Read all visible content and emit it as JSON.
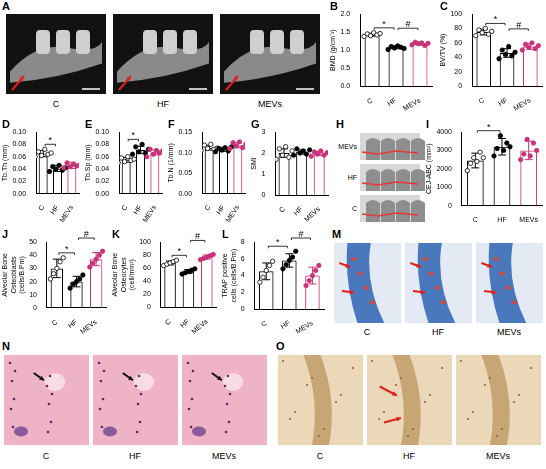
{
  "chart_data": [
    {
      "panel_label": "B",
      "type": "bar",
      "y_label": "BMD (g/cm⁻³)",
      "categories": [
        "C",
        "HF",
        "MEVs"
      ],
      "values": [
        1.43,
        1.08,
        1.18
      ],
      "errors": [
        0.04,
        0.04,
        0.04
      ],
      "points": [
        [
          1.38,
          1.45,
          1.4,
          1.48,
          1.42,
          1.46
        ],
        [
          1.02,
          1.1,
          1.06,
          1.12,
          1.08,
          1.05
        ],
        [
          1.15,
          1.22,
          1.18,
          1.2,
          1.13,
          1.19
        ]
      ],
      "colors": [
        "#000000",
        "#000000",
        "#c83278"
      ],
      "point_colors": [
        "#ffffff",
        "#000000",
        "#c83278"
      ],
      "ylim": [
        0,
        2
      ],
      "yticks": [
        {
          "value": 0,
          "label": "0.0"
        },
        0.5,
        {
          "value": 1,
          "label": "1.0"
        },
        1.5,
        {
          "value": 2,
          "label": "2.0"
        }
      ],
      "grid": false,
      "annotations": [
        {
          "from": "C",
          "to": "HF",
          "text": "*"
        },
        {
          "from": "HF",
          "to": "MEVs",
          "text": "#"
        }
      ]
    },
    {
      "panel_label": "C",
      "type": "bar",
      "y_label": "BV/TV (%)",
      "categories": [
        "C",
        "HF",
        "MEVs"
      ],
      "values": [
        75,
        46,
        55
      ],
      "errors": [
        4,
        6,
        4
      ],
      "points": [
        [
          70,
          78,
          74,
          80,
          72,
          76
        ],
        [
          38,
          50,
          44,
          55,
          42,
          47
        ],
        [
          50,
          58,
          54,
          60,
          52,
          56
        ]
      ],
      "colors": [
        "#000000",
        "#000000",
        "#c83278"
      ],
      "point_colors": [
        "#ffffff",
        "#000000",
        "#c83278"
      ],
      "ylim": [
        0,
        100
      ],
      "yticks": [
        0,
        20,
        40,
        60,
        80,
        100
      ],
      "grid": false,
      "annotations": [
        {
          "from": "C",
          "to": "HF",
          "text": "*"
        },
        {
          "from": "HF",
          "to": "MEVs",
          "text": "#"
        }
      ]
    },
    {
      "panel_label": "D",
      "type": "bar",
      "y_label": "Tb.Th (mm)",
      "categories": [
        "C",
        "HF",
        "MEVs"
      ],
      "values": [
        0.065,
        0.041,
        0.046
      ],
      "errors": [
        0.005,
        0.005,
        0.005
      ],
      "points": [
        [
          0.06,
          0.068,
          0.062,
          0.072,
          0.064,
          0.066
        ],
        [
          0.036,
          0.044,
          0.04,
          0.046,
          0.038,
          0.042
        ],
        [
          0.042,
          0.05,
          0.044,
          0.048,
          0.045,
          0.047
        ]
      ],
      "colors": [
        "#000000",
        "#000000",
        "#c83278"
      ],
      "point_colors": [
        "#ffffff",
        "#000000",
        "#c83278"
      ],
      "ylim": [
        0,
        0.1
      ],
      "yticks": [
        {
          "value": 0,
          "label": "0.00"
        },
        0.02,
        0.04,
        0.06,
        0.08,
        {
          "value": 0.1,
          "label": "0.10"
        }
      ],
      "grid": false,
      "annotations": [
        {
          "from": "C",
          "to": "HF",
          "text": "*"
        }
      ]
    },
    {
      "panel_label": "E",
      "type": "bar",
      "y_label": "Tb.Sp (mm)",
      "categories": [
        "C",
        "HF",
        "MEVs"
      ],
      "values": [
        0.055,
        0.071,
        0.067
      ],
      "errors": [
        0.004,
        0.006,
        0.004
      ],
      "points": [
        [
          0.05,
          0.058,
          0.052,
          0.06,
          0.054,
          0.056
        ],
        [
          0.064,
          0.076,
          0.068,
          0.08,
          0.066,
          0.072
        ],
        [
          0.06,
          0.072,
          0.064,
          0.07,
          0.066,
          0.07
        ]
      ],
      "colors": [
        "#000000",
        "#000000",
        "#c83278"
      ],
      "point_colors": [
        "#ffffff",
        "#000000",
        "#c83278"
      ],
      "ylim": [
        0,
        0.1
      ],
      "yticks": [
        {
          "value": 0,
          "label": "0.00"
        },
        0.02,
        0.04,
        0.06,
        0.08,
        {
          "value": 0.1,
          "label": "0.10"
        }
      ],
      "grid": false,
      "annotations": [
        {
          "from": "C",
          "to": "HF",
          "text": "*"
        }
      ]
    },
    {
      "panel_label": "F",
      "type": "bar",
      "y_label": "Tb.N (1/mm)",
      "categories": [
        "C",
        "HF",
        "MEVs"
      ],
      "values": [
        0.112,
        0.108,
        0.118
      ],
      "errors": [
        0.006,
        0.005,
        0.006
      ],
      "points": [
        [
          0.105,
          0.118,
          0.11,
          0.12,
          0.108,
          0.111
        ],
        [
          0.102,
          0.11,
          0.106,
          0.112,
          0.104,
          0.114
        ],
        [
          0.11,
          0.124,
          0.116,
          0.126,
          0.112,
          0.12
        ]
      ],
      "colors": [
        "#000000",
        "#000000",
        "#c83278"
      ],
      "point_colors": [
        "#ffffff",
        "#000000",
        "#c83278"
      ],
      "ylim": [
        0,
        0.15
      ],
      "yticks": [
        {
          "value": 0,
          "label": "0.00"
        },
        0.05,
        {
          "value": 0.1,
          "label": "0.10"
        },
        0.15
      ],
      "grid": false,
      "annotations": []
    },
    {
      "panel_label": "G",
      "type": "bar",
      "y_label": "SMI",
      "categories": [
        "C",
        "HF",
        "MEVs"
      ],
      "values": [
        2.0,
        2.05,
        1.98
      ],
      "errors": [
        0.2,
        0.1,
        0.09
      ],
      "points": [
        [
          1.7,
          2.2,
          1.9,
          2.3,
          1.8,
          2.1
        ],
        [
          1.9,
          2.2,
          2.0,
          2.1,
          1.95,
          2.15
        ],
        [
          1.85,
          2.05,
          1.95,
          2.1,
          1.9,
          2.02
        ]
      ],
      "colors": [
        "#000000",
        "#000000",
        "#c83278"
      ],
      "point_colors": [
        "#ffffff",
        "#000000",
        "#c83278"
      ],
      "ylim": [
        0,
        3
      ],
      "yticks": [
        0,
        1,
        2,
        3
      ],
      "grid": false,
      "annotations": []
    },
    {
      "panel_label": "I",
      "type": "bar",
      "y_label": "CEJ-ABC (mm²)",
      "categories": [
        "C",
        "HF",
        "MEVs"
      ],
      "values": [
        2450,
        3200,
        3000
      ],
      "errors": [
        400,
        450,
        500
      ],
      "points": [
        [
          1900,
          2300,
          2600,
          2400,
          2900,
          2600
        ],
        [
          2700,
          3100,
          3800,
          3000,
          3400,
          3200
        ],
        [
          2500,
          2800,
          3600,
          2700,
          3400,
          3000
        ]
      ],
      "colors": [
        "#000000",
        "#000000",
        "#c83278"
      ],
      "point_colors": [
        "#ffffff",
        "#000000",
        "#c83278"
      ],
      "ylim": [
        0,
        4000
      ],
      "yticks": [
        0,
        1000,
        2000,
        3000,
        4000
      ],
      "grid": false,
      "annotations": [
        {
          "from": "C",
          "to": "HF",
          "text": "*"
        }
      ]
    },
    {
      "panel_label": "J",
      "type": "bar",
      "y_label": "Alveolar Bone Osteoblasts (cells/B.Pm)",
      "categories": [
        "C",
        "HF",
        "MEVs"
      ],
      "values": [
        30,
        20,
        37
      ],
      "errors": [
        7,
        4,
        5
      ],
      "points": [
        [
          22,
          26,
          30,
          35,
          38
        ],
        [
          15,
          18,
          20,
          22,
          25
        ],
        [
          31,
          34,
          37,
          40,
          43
        ]
      ],
      "colors": [
        "#000000",
        "#000000",
        "#c83278"
      ],
      "point_colors": [
        "#ffffff",
        "#000000",
        "#c83278"
      ],
      "ylim": [
        0,
        50
      ],
      "yticks": [
        0,
        10,
        20,
        30,
        40,
        50
      ],
      "grid": false,
      "annotations": [
        {
          "from": "C",
          "to": "HF",
          "text": "*"
        },
        {
          "from": "HF",
          "to": "MEVs",
          "text": "#"
        }
      ]
    },
    {
      "panel_label": "K",
      "type": "bar",
      "y_label": "Alveolar Bone Osteocytes (cell/mm²)",
      "categories": [
        "C",
        "HF",
        "MEVs"
      ],
      "values": [
        68,
        55,
        77
      ],
      "errors": [
        3,
        3,
        3
      ],
      "points": [
        [
          64,
          66,
          68,
          70,
          72
        ],
        [
          51,
          53,
          55,
          57,
          59
        ],
        [
          73,
          75,
          77,
          79,
          81
        ]
      ],
      "colors": [
        "#000000",
        "#000000",
        "#c83278"
      ],
      "point_colors": [
        "#ffffff",
        "#000000",
        "#c83278"
      ],
      "ylim": [
        0,
        100
      ],
      "yticks": [
        0,
        20,
        40,
        60,
        80,
        100
      ],
      "grid": false,
      "annotations": [
        {
          "from": "C",
          "to": "HF",
          "text": "*"
        },
        {
          "from": "HF",
          "to": "MEVs",
          "text": "#"
        }
      ]
    },
    {
      "panel_label": "L",
      "type": "bar",
      "y_label": "TRAP positive cells (cells/B.Pm)",
      "categories": [
        "C",
        "HF",
        "MEVs"
      ],
      "values": [
        4.5,
        5.8,
        4.0
      ],
      "errors": [
        1.0,
        0.8,
        1.0
      ],
      "points": [
        [
          3.2,
          3.8,
          4.6,
          5.2,
          5.7
        ],
        [
          4.8,
          5.3,
          5.8,
          6.2,
          6.9
        ],
        [
          2.8,
          3.4,
          4.0,
          4.6,
          5.2
        ]
      ],
      "colors": [
        "#000000",
        "#000000",
        "#c83278"
      ],
      "point_colors": [
        "#ffffff",
        "#000000",
        "#c83278"
      ],
      "ylim": [
        0,
        8
      ],
      "yticks": [
        0,
        2,
        4,
        6,
        8
      ],
      "grid": false,
      "annotations": [
        {
          "from": "C",
          "to": "HF",
          "text": "*"
        },
        {
          "from": "HF",
          "to": "MEVs",
          "text": "#"
        }
      ]
    }
  ],
  "image_panels": [
    {
      "panel_label": "A",
      "labels": [
        "C",
        "HF",
        "MEVs"
      ]
    },
    {
      "panel_label": "H",
      "labels": [
        "MEVs",
        "HF",
        "C"
      ]
    },
    {
      "panel_label": "M",
      "labels": [
        "C",
        "HF",
        "MEVs"
      ]
    },
    {
      "panel_label": "N",
      "labels": [
        "C",
        "HF",
        "MEVs"
      ]
    },
    {
      "panel_label": "O",
      "labels": [
        "C",
        "HF",
        "MEVs"
      ]
    }
  ]
}
